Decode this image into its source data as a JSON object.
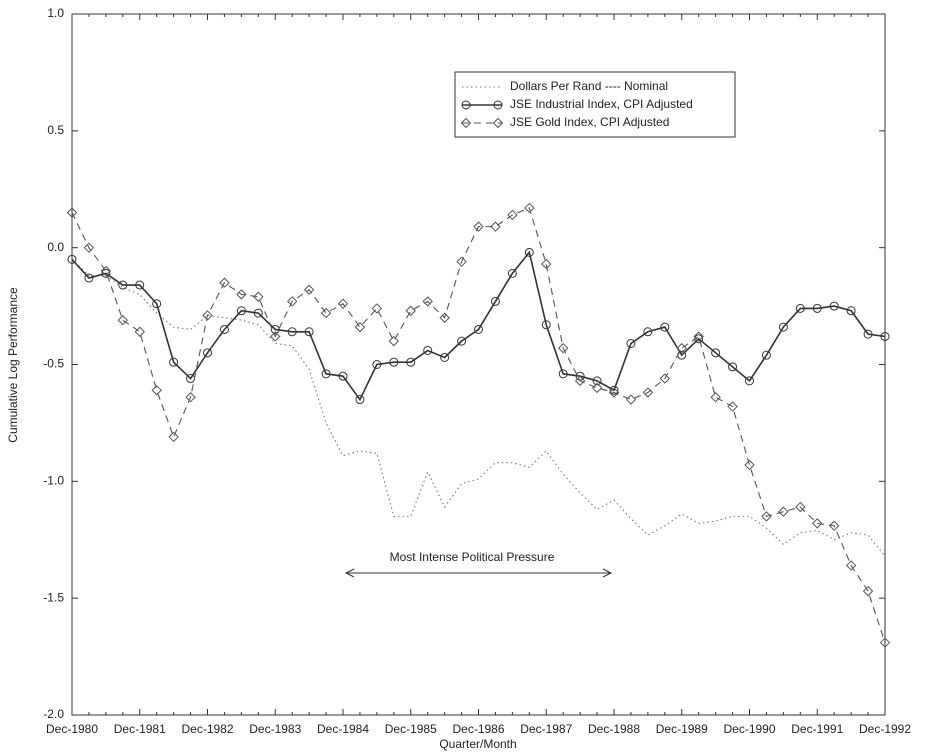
{
  "chart_data": {
    "type": "line",
    "x_label": "Quarter/Month",
    "y_label": "Cumulative Log Performance",
    "annotation": "Most Intense Political Pressure",
    "categories": [
      "Dec-1980",
      null,
      null,
      null,
      "Dec-1981",
      null,
      null,
      null,
      "Dec-1982",
      null,
      null,
      null,
      "Dec-1983",
      null,
      null,
      null,
      "Dec-1984",
      null,
      null,
      null,
      "Dec-1985",
      null,
      null,
      null,
      "Dec-1986",
      null,
      null,
      null,
      "Dec-1987",
      null,
      null,
      null,
      "Dec-1988",
      null,
      null,
      null,
      "Dec-1989",
      null,
      null,
      null,
      "Dec-1990",
      null,
      null,
      null,
      "Dec-1991",
      null,
      null,
      null,
      "Dec-1992"
    ],
    "ylim": [
      -2,
      1
    ],
    "yticks": [
      {
        "value": 1,
        "label": "1.0"
      },
      0.5,
      {
        "value": 0,
        "label": "0.0"
      },
      -0.5,
      {
        "value": -1,
        "label": "-1.0"
      },
      -1.5,
      {
        "value": -2,
        "label": "-2.0"
      }
    ],
    "legend": "upper right",
    "series": [
      {
        "name": "Dollars Per Rand ---- Nominal",
        "color": "#777777",
        "style": "dotted",
        "marker": "none",
        "values": [
          -0.05,
          -0.12,
          -0.12,
          -0.17,
          -0.2,
          -0.28,
          -0.34,
          -0.35,
          -0.29,
          -0.3,
          -0.31,
          -0.33,
          -0.41,
          -0.42,
          -0.52,
          -0.75,
          -0.89,
          -0.87,
          -0.88,
          -1.15,
          -1.15,
          -0.96,
          -1.11,
          -1.01,
          -0.99,
          -0.92,
          -0.92,
          -0.94,
          -0.87,
          -0.97,
          -1.05,
          -1.12,
          -1.08,
          -1.16,
          -1.23,
          -1.19,
          -1.14,
          -1.18,
          -1.17,
          -1.15,
          -1.15,
          -1.2,
          -1.27,
          -1.22,
          -1.21,
          -1.25,
          -1.22,
          -1.23,
          -1.32
        ]
      },
      {
        "name": "JSE Industrial Index, CPI Adjusted",
        "color": "#333333",
        "style": "solid",
        "marker": "circle",
        "values": [
          -0.05,
          -0.13,
          -0.11,
          -0.16,
          -0.16,
          -0.24,
          -0.49,
          -0.56,
          -0.45,
          -0.35,
          -0.27,
          -0.28,
          -0.35,
          -0.36,
          -0.36,
          -0.54,
          -0.55,
          -0.65,
          -0.5,
          -0.49,
          -0.49,
          -0.44,
          -0.47,
          -0.4,
          -0.35,
          -0.23,
          -0.11,
          -0.02,
          -0.33,
          -0.54,
          -0.55,
          -0.57,
          -0.61,
          -0.41,
          -0.36,
          -0.34,
          -0.46,
          -0.39,
          -0.45,
          -0.51,
          -0.57,
          -0.46,
          -0.34,
          -0.26,
          -0.26,
          -0.25,
          -0.27,
          -0.37,
          -0.38
        ]
      },
      {
        "name": "JSE Gold Index, CPI Adjusted",
        "color": "#555555",
        "style": "dashed",
        "marker": "diamond",
        "values": [
          0.15,
          0,
          -0.1,
          -0.31,
          -0.36,
          -0.61,
          -0.81,
          -0.64,
          -0.29,
          -0.15,
          -0.2,
          -0.21,
          -0.38,
          -0.23,
          -0.18,
          -0.28,
          -0.24,
          -0.34,
          -0.26,
          -0.4,
          -0.27,
          -0.23,
          -0.3,
          -0.06,
          0.09,
          0.09,
          0.14,
          0.17,
          -0.07,
          -0.43,
          -0.57,
          -0.6,
          -0.62,
          -0.65,
          -0.62,
          -0.56,
          -0.43,
          -0.38,
          -0.64,
          -0.68,
          -0.93,
          -1.15,
          -1.13,
          -1.11,
          -1.18,
          -1.19,
          -1.36,
          -1.47,
          -1.69
        ]
      }
    ]
  }
}
